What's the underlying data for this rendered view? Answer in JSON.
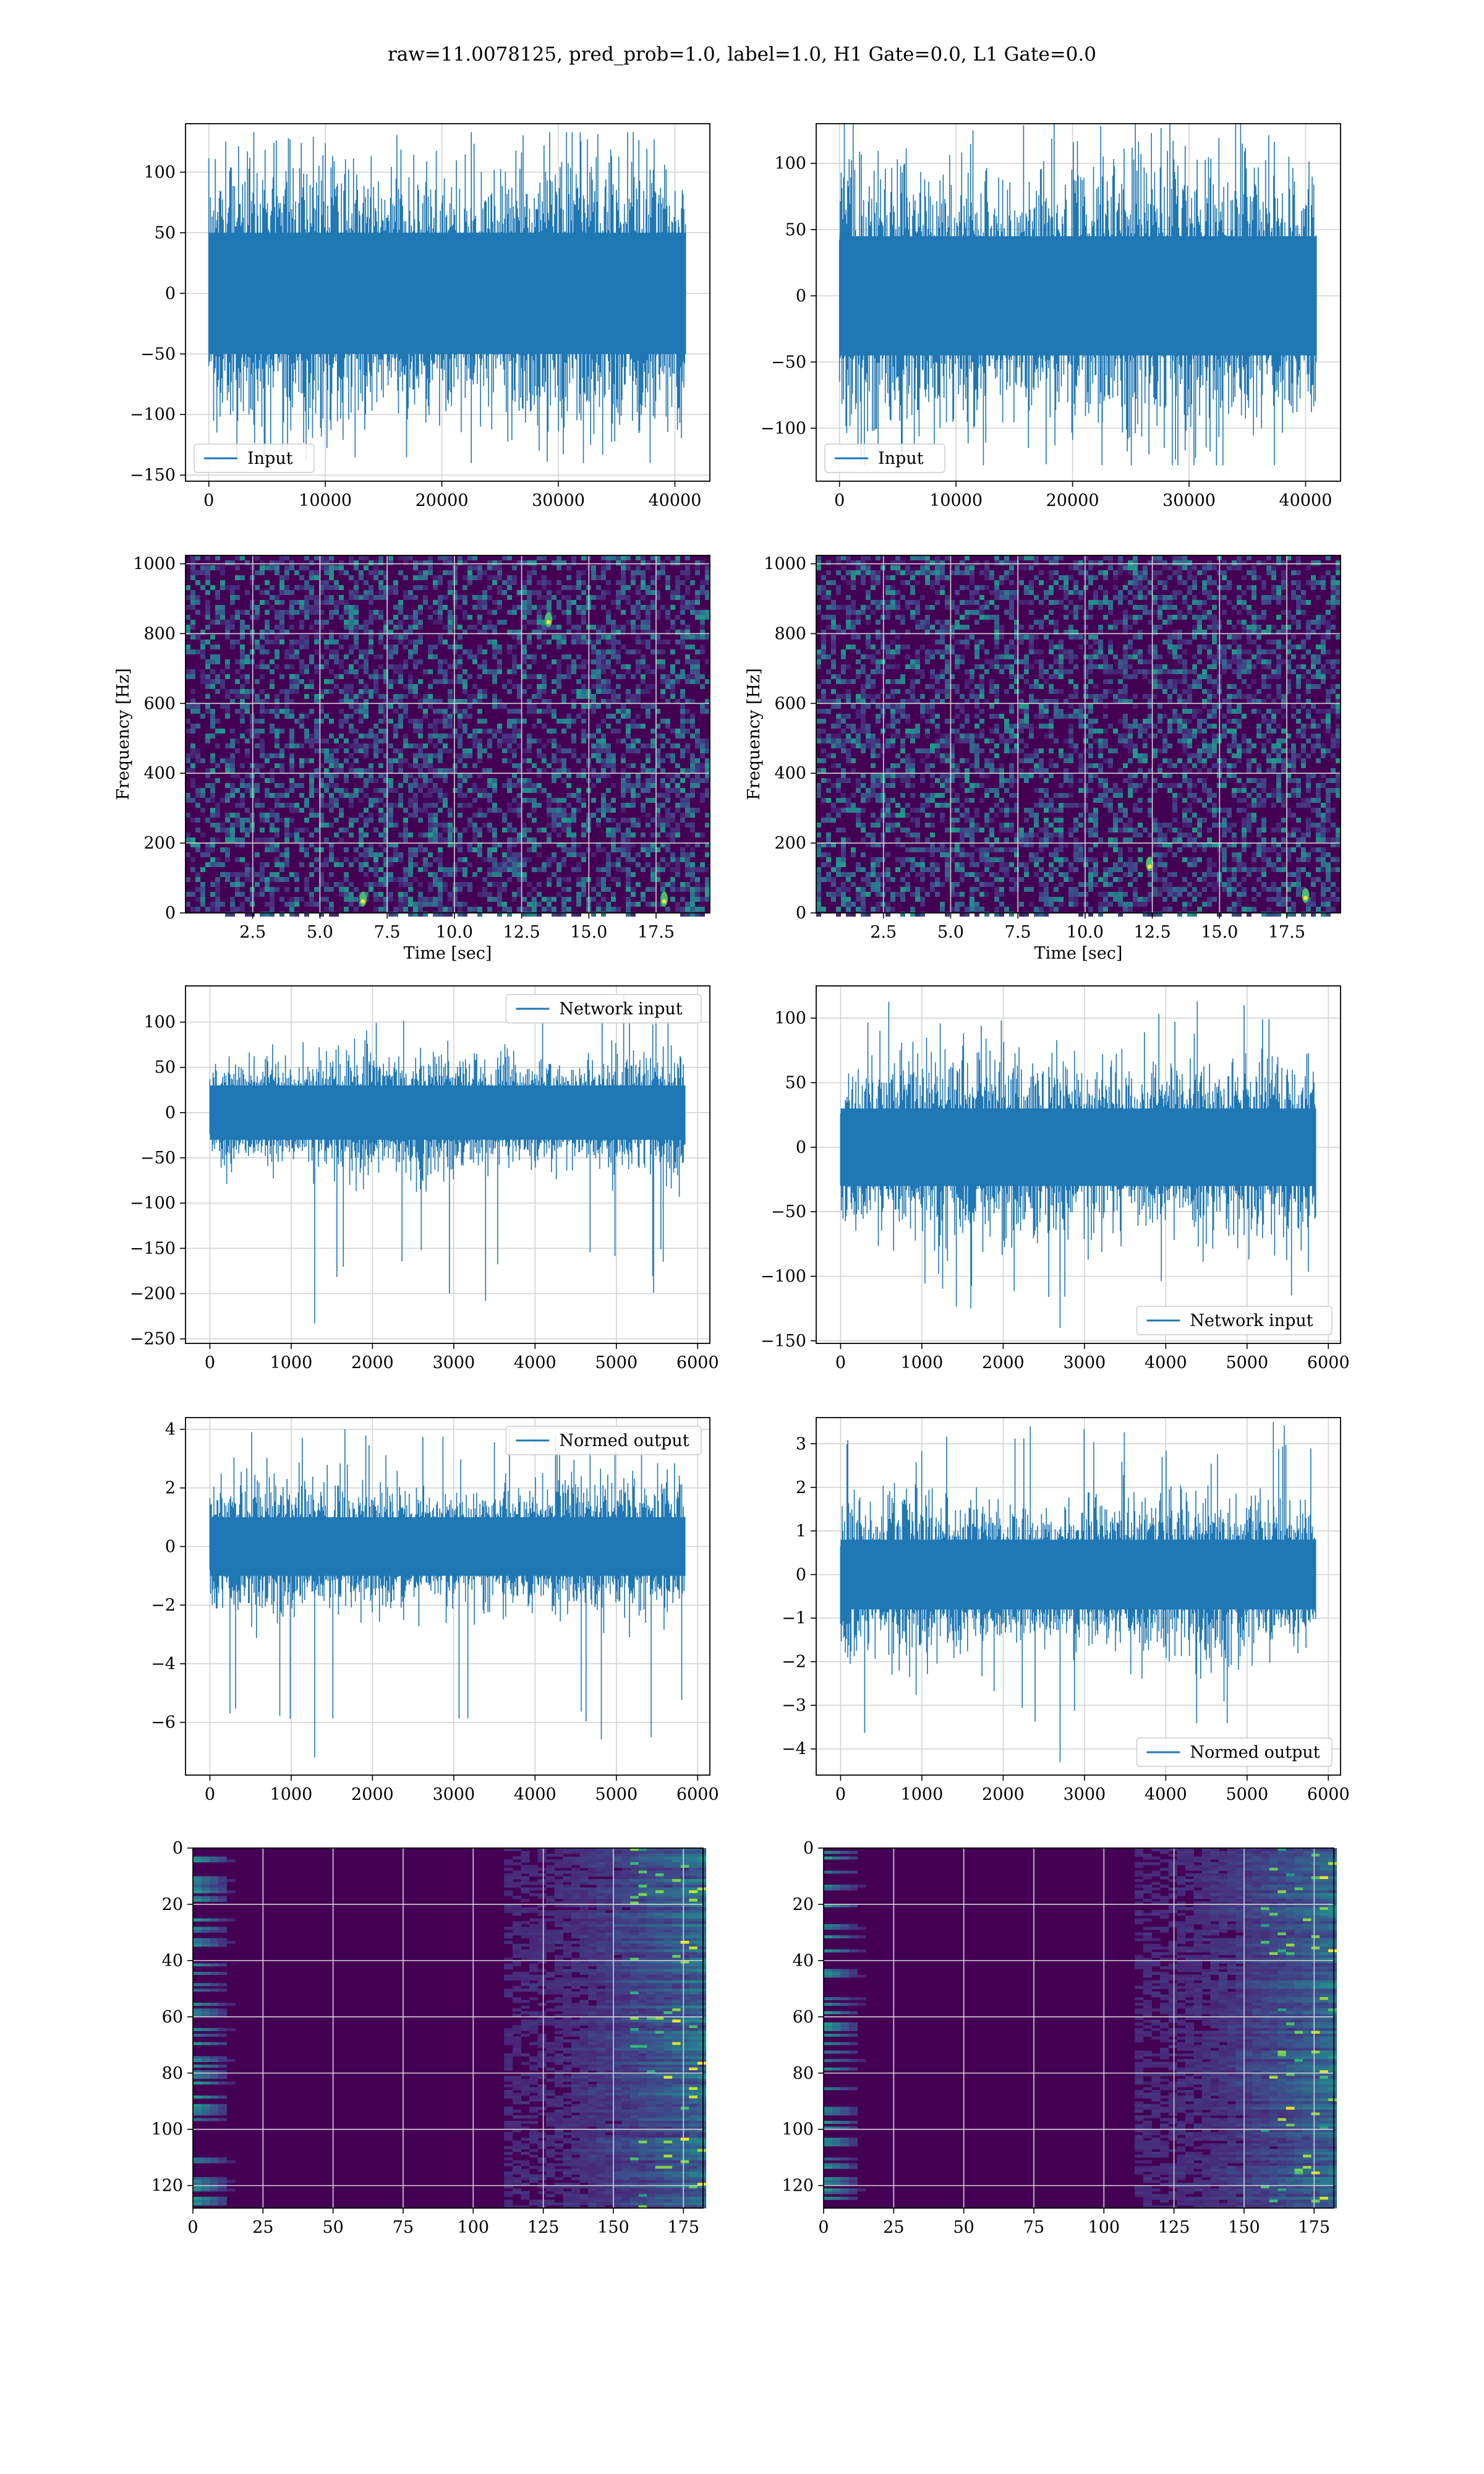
{
  "figure": {
    "title": "raw=11.0078125, pred_prob=1.0, label=1.0, H1 Gate=0.0, L1 Gate=0.0"
  },
  "colors": {
    "line": "#1f77b4",
    "grid": "#d3d3d3",
    "viridis_dark": "#440154",
    "viridis_mid": "#21918c",
    "viridis_bright": "#fde725"
  },
  "chart_data": [
    {
      "id": "h1-input",
      "type": "line",
      "title": "",
      "xlabel": "",
      "ylabel": "",
      "xlim": [
        -2000,
        43000
      ],
      "ylim": [
        -155,
        140
      ],
      "xticks": [
        0,
        10000,
        20000,
        30000,
        40000
      ],
      "yticks": [
        -150,
        -100,
        -50,
        0,
        50,
        100
      ],
      "grid": true,
      "legend": {
        "position": "lower-left",
        "entries": [
          "Input"
        ]
      },
      "series": [
        {
          "name": "Input",
          "n_points": 40960,
          "x_range": [
            0,
            40960
          ],
          "core_range": [
            -50,
            50
          ],
          "max": 133,
          "min": -140
        }
      ]
    },
    {
      "id": "l1-input",
      "type": "line",
      "title": "",
      "xlabel": "",
      "ylabel": "",
      "xlim": [
        -2000,
        43000
      ],
      "ylim": [
        -140,
        130
      ],
      "xticks": [
        0,
        10000,
        20000,
        30000,
        40000
      ],
      "yticks": [
        -100,
        -50,
        0,
        50,
        100
      ],
      "grid": true,
      "legend": {
        "position": "lower-left",
        "entries": [
          "Input"
        ]
      },
      "series": [
        {
          "name": "Input",
          "n_points": 40960,
          "x_range": [
            0,
            40960
          ],
          "core_range": [
            -45,
            45
          ],
          "max": 130,
          "min": -128
        }
      ]
    },
    {
      "id": "h1-spectrogram",
      "type": "heatmap",
      "title": "",
      "xlabel": "Time [sec]",
      "ylabel": "Frequency [Hz]",
      "xlim": [
        0,
        19.5
      ],
      "ylim": [
        0,
        1024
      ],
      "xticks": [
        2.5,
        5.0,
        7.5,
        10.0,
        12.5,
        15.0,
        17.5
      ],
      "xtick_labels": [
        "2.5",
        "5.0",
        "7.5",
        "10.0",
        "12.5",
        "15.0",
        "17.5"
      ],
      "yticks": [
        0,
        200,
        400,
        600,
        800,
        1000
      ],
      "grid": true,
      "colormap": "viridis",
      "bright_features": [
        {
          "time": 17.8,
          "freq": 40
        },
        {
          "time": 6.6,
          "freq": 40
        },
        {
          "time": 13.5,
          "freq": 840
        }
      ]
    },
    {
      "id": "l1-spectrogram",
      "type": "heatmap",
      "title": "",
      "xlabel": "Time [sec]",
      "ylabel": "Frequency [Hz]",
      "xlim": [
        0,
        19.5
      ],
      "ylim": [
        0,
        1024
      ],
      "xticks": [
        2.5,
        5.0,
        7.5,
        10.0,
        12.5,
        15.0,
        17.5
      ],
      "xtick_labels": [
        "2.5",
        "5.0",
        "7.5",
        "10.0",
        "12.5",
        "15.0",
        "17.5"
      ],
      "yticks": [
        0,
        200,
        400,
        600,
        800,
        1000
      ],
      "grid": true,
      "colormap": "viridis",
      "bright_features": [
        {
          "time": 18.2,
          "freq": 50
        },
        {
          "time": 12.4,
          "freq": 140
        }
      ]
    },
    {
      "id": "h1-network-input",
      "type": "line",
      "title": "",
      "xlabel": "",
      "ylabel": "",
      "xlim": [
        -300,
        6150
      ],
      "ylim": [
        -255,
        140
      ],
      "xticks": [
        0,
        1000,
        2000,
        3000,
        4000,
        5000,
        6000
      ],
      "yticks": [
        -250,
        -200,
        -150,
        -100,
        -50,
        0,
        50,
        100
      ],
      "grid": true,
      "legend": {
        "position": "upper-right",
        "entries": [
          "Network input"
        ]
      },
      "series": [
        {
          "name": "Network input",
          "n_points": 5850,
          "x_range": [
            0,
            5850
          ],
          "core_range": [
            -30,
            30
          ],
          "max": 130,
          "min": -233,
          "min_at": 1290
        }
      ]
    },
    {
      "id": "l1-network-input",
      "type": "line",
      "title": "",
      "xlabel": "",
      "ylabel": "",
      "xlim": [
        -300,
        6150
      ],
      "ylim": [
        -152,
        125
      ],
      "xticks": [
        0,
        1000,
        2000,
        3000,
        4000,
        5000,
        6000
      ],
      "yticks": [
        -150,
        -100,
        -50,
        0,
        50,
        100
      ],
      "grid": true,
      "legend": {
        "position": "lower-right",
        "entries": [
          "Network input"
        ]
      },
      "series": [
        {
          "name": "Network input",
          "n_points": 5850,
          "x_range": [
            0,
            5850
          ],
          "core_range": [
            -30,
            30
          ],
          "max": 113,
          "min": -140,
          "min_at": 2700
        }
      ]
    },
    {
      "id": "h1-normed-output",
      "type": "line",
      "title": "",
      "xlabel": "",
      "ylabel": "",
      "xlim": [
        -300,
        6150
      ],
      "ylim": [
        -7.8,
        4.4
      ],
      "xticks": [
        0,
        1000,
        2000,
        3000,
        4000,
        5000,
        6000
      ],
      "yticks": [
        -6,
        -4,
        -2,
        0,
        2,
        4
      ],
      "grid": true,
      "legend": {
        "position": "upper-right",
        "entries": [
          "Normed output"
        ]
      },
      "series": [
        {
          "name": "Normed output",
          "n_points": 5850,
          "x_range": [
            0,
            5850
          ],
          "core_range": [
            -1,
            1
          ],
          "max": 4.0,
          "min": -7.2,
          "min_at": 1290
        }
      ]
    },
    {
      "id": "l1-normed-output",
      "type": "line",
      "title": "",
      "xlabel": "",
      "ylabel": "",
      "xlim": [
        -300,
        6150
      ],
      "ylim": [
        -4.6,
        3.6
      ],
      "xticks": [
        0,
        1000,
        2000,
        3000,
        4000,
        5000,
        6000
      ],
      "yticks": [
        -4,
        -3,
        -2,
        -1,
        0,
        1,
        2,
        3
      ],
      "grid": true,
      "legend": {
        "position": "lower-right",
        "entries": [
          "Normed output"
        ]
      },
      "series": [
        {
          "name": "Normed output",
          "n_points": 5850,
          "x_range": [
            0,
            5850
          ],
          "core_range": [
            -0.8,
            0.8
          ],
          "max": 3.5,
          "min": -4.3,
          "min_at": 2700
        }
      ]
    },
    {
      "id": "h1-feature-map",
      "type": "heatmap",
      "title": "",
      "xlabel": "",
      "ylabel": "",
      "xlim": [
        0,
        182
      ],
      "ylim": [
        128,
        0
      ],
      "xticks": [
        0,
        25,
        50,
        75,
        100,
        125,
        150,
        175
      ],
      "yticks": [
        0,
        20,
        40,
        60,
        80,
        100,
        120
      ],
      "grid": true,
      "colormap": "viridis",
      "shape": [
        128,
        182
      ]
    },
    {
      "id": "l1-feature-map",
      "type": "heatmap",
      "title": "",
      "xlabel": "",
      "ylabel": "",
      "xlim": [
        0,
        182
      ],
      "ylim": [
        128,
        0
      ],
      "xticks": [
        0,
        25,
        50,
        75,
        100,
        125,
        150,
        175
      ],
      "yticks": [
        0,
        20,
        40,
        60,
        80,
        100,
        120
      ],
      "grid": true,
      "colormap": "viridis",
      "shape": [
        128,
        182
      ]
    }
  ]
}
